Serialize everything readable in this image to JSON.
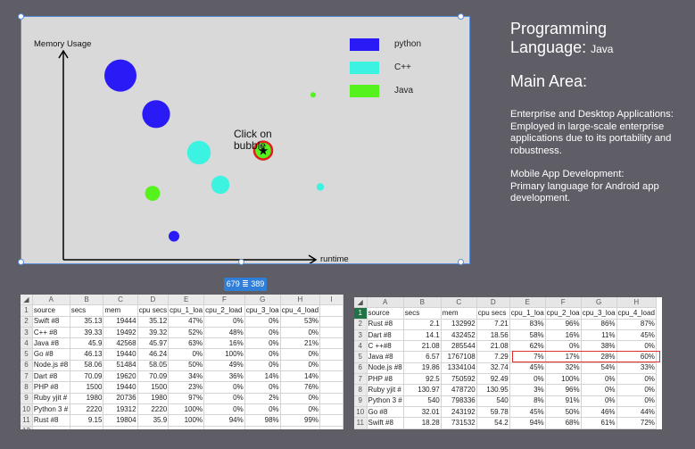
{
  "chart": {
    "y_axis_label": "Memory Usage",
    "x_axis_label": "runtime",
    "legend": [
      {
        "label": "python",
        "color": "#2a1af5"
      },
      {
        "label": "C++",
        "color": "#3cf2e0"
      },
      {
        "label": "Java",
        "color": "#55f21e"
      }
    ],
    "callout": "Click on\nbubble",
    "callout_line1": "Click on",
    "callout_line2": "bubble",
    "dimension_badge": "679 ≣ 389"
  },
  "chart_data": {
    "type": "scatter",
    "xlabel": "runtime",
    "ylabel": "Memory Usage",
    "series": [
      {
        "name": "python",
        "points": [
          [
            1.6,
            8.6,
            3
          ],
          [
            2.6,
            6.8,
            2.6
          ],
          [
            3.1,
            1.1,
            1
          ]
        ]
      },
      {
        "name": "C++",
        "points": [
          [
            3.8,
            5.0,
            2.2
          ],
          [
            4.4,
            3.5,
            1.7
          ],
          [
            7.2,
            3.4,
            0.7
          ]
        ]
      },
      {
        "name": "Java",
        "points": [
          [
            2.5,
            3.1,
            1.4
          ],
          [
            5.6,
            5.1,
            1.8
          ],
          [
            7.0,
            7.7,
            0.5
          ]
        ]
      }
    ],
    "selected_point": {
      "series": "Java",
      "x": 5.6,
      "y": 5.1
    }
  },
  "right_panel": {
    "lang_title_a": "Programming",
    "lang_title_b": "Language: ",
    "lang_value": "Java",
    "main_area": "Main Area:",
    "p1": "Enterprise and Desktop Applications:",
    "p2": "Employed in large-scale enterprise applications due to its portability and robustness.",
    "p3": "Mobile App Development:",
    "p4": "Primary language for Android app development."
  },
  "sheet1": {
    "columns": [
      "A",
      "B",
      "C",
      "D",
      "E",
      "F",
      "G",
      "H",
      "I"
    ],
    "rows": [
      [
        "source",
        "secs",
        "mem",
        "cpu secs",
        "cpu_1_loa",
        "cpu_2_load",
        "cpu_3_loa",
        "cpu_4_load"
      ],
      [
        "Swift #8",
        "35.13",
        "19444",
        "35.12",
        "47%",
        "0%",
        "0%",
        "53%"
      ],
      [
        "C++ #8",
        "39.33",
        "19492",
        "39.32",
        "52%",
        "48%",
        "0%",
        "0%"
      ],
      [
        "Java #8",
        "45.9",
        "42568",
        "45.97",
        "63%",
        "16%",
        "0%",
        "21%"
      ],
      [
        "Go #8",
        "46.13",
        "19440",
        "46.24",
        "0%",
        "100%",
        "0%",
        "0%"
      ],
      [
        "Node.js #8",
        "58.06",
        "51484",
        "58.05",
        "50%",
        "49%",
        "0%",
        "0%"
      ],
      [
        "Dart #8",
        "70.09",
        "19620",
        "70.09",
        "34%",
        "36%",
        "14%",
        "14%"
      ],
      [
        "PHP #8",
        "1500",
        "19440",
        "1500",
        "23%",
        "0%",
        "0%",
        "76%"
      ],
      [
        "Ruby yjit #",
        "1980",
        "20736",
        "1980",
        "97%",
        "0%",
        "2%",
        "0%"
      ],
      [
        "Python 3 #",
        "2220",
        "19312",
        "2220",
        "100%",
        "0%",
        "0%",
        "0%"
      ],
      [
        "Rust #8",
        "9.15",
        "19804",
        "35.9",
        "100%",
        "94%",
        "98%",
        "99%"
      ],
      [
        "",
        "",
        "",
        "",
        "",
        "",
        "",
        ""
      ]
    ]
  },
  "sheet2": {
    "columns": [
      "A",
      "B",
      "C",
      "D",
      "E",
      "F",
      "G",
      "H"
    ],
    "rows": [
      [
        "source",
        "secs",
        "mem",
        "cpu secs",
        "cpu_1_loa",
        "cpu_2_loa",
        "cpu_3_loa",
        "cpu_4_load"
      ],
      [
        "Rust #8",
        "2.1",
        "132992",
        "7.21",
        "83%",
        "96%",
        "86%",
        "87%"
      ],
      [
        "Dart #8",
        "14.1",
        "432452",
        "18.56",
        "58%",
        "16%",
        "11%",
        "45%"
      ],
      [
        "C ++#8",
        "21.08",
        "285544",
        "21.08",
        "62%",
        "0%",
        "38%",
        "0%"
      ],
      [
        "Java #8",
        "6.57",
        "1767108",
        "7.29",
        "7%",
        "17%",
        "28%",
        "60%"
      ],
      [
        "Node.js #8",
        "19.86",
        "1334104",
        "32.74",
        "45%",
        "32%",
        "54%",
        "33%"
      ],
      [
        "PHP #8",
        "92.5",
        "750592",
        "92.49",
        "0%",
        "100%",
        "0%",
        "0%"
      ],
      [
        "Ruby yjit #",
        "130.97",
        "478720",
        "130.95",
        "3%",
        "96%",
        "0%",
        "0%"
      ],
      [
        "Python 3 #",
        "540",
        "798336",
        "540",
        "8%",
        "91%",
        "0%",
        "0%"
      ],
      [
        "Go #8",
        "32.01",
        "243192",
        "59.78",
        "45%",
        "50%",
        "46%",
        "44%"
      ],
      [
        "Swift #8",
        "18.28",
        "731532",
        "54.2",
        "94%",
        "68%",
        "61%",
        "72%"
      ],
      [
        "",
        "",
        "",
        "",
        "",
        "",
        "",
        ""
      ]
    ]
  }
}
